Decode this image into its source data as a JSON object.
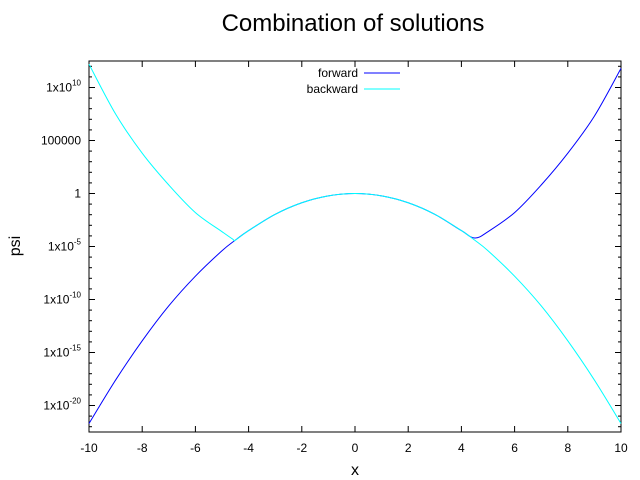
{
  "chart_data": {
    "type": "line",
    "title": "Combination of solutions",
    "xlabel": "x",
    "ylabel": "psi",
    "xlim": [
      -10,
      10
    ],
    "ylim_log10": [
      -22.5,
      12.5
    ],
    "yscale": "log",
    "grid": false,
    "legend_position": "top-center",
    "x_ticks": [
      -10,
      -8,
      -6,
      -4,
      -2,
      0,
      2,
      4,
      6,
      8,
      10
    ],
    "y_ticks": [
      {
        "exp": 10,
        "base": "1x10",
        "sup": "10"
      },
      {
        "exp": 5,
        "text": "100000"
      },
      {
        "exp": 0,
        "text": "1"
      },
      {
        "exp": -5,
        "base": "1x10",
        "sup": "-5"
      },
      {
        "exp": -10,
        "base": "1x10",
        "sup": "-10"
      },
      {
        "exp": -15,
        "base": "1x10",
        "sup": "-15"
      },
      {
        "exp": -20,
        "base": "1x10",
        "sup": "-20"
      }
    ],
    "series": [
      {
        "name": "forward",
        "color": "#0000ff",
        "x": [
          -10,
          -9,
          -8,
          -7,
          -6,
          -5,
          -4.5,
          -4,
          -3,
          -2,
          -1,
          0,
          1,
          2,
          3,
          4,
          4.5,
          5,
          6,
          7,
          8,
          9,
          10
        ],
        "log10_y": [
          -21.7,
          -17.6,
          -13.9,
          -10.6,
          -7.8,
          -5.4,
          -4.4,
          -3.5,
          -1.96,
          -0.87,
          -0.22,
          0,
          -0.22,
          -0.87,
          -1.96,
          -3.5,
          -4.2,
          -3.6,
          -1.8,
          0.8,
          3.8,
          7.3,
          11.8
        ]
      },
      {
        "name": "backward",
        "color": "#00ffff",
        "x": [
          -10,
          -9,
          -8,
          -7,
          -6,
          -5,
          -4.6,
          -4.5,
          -4,
          -3,
          -2,
          -1,
          0,
          1,
          2,
          3,
          4,
          4.5,
          5,
          6,
          7,
          8,
          9,
          10
        ],
        "log10_y": [
          12.2,
          7.5,
          3.8,
          0.8,
          -1.8,
          -3.6,
          -4.3,
          -4.4,
          -3.5,
          -1.96,
          -0.87,
          -0.22,
          0,
          -0.22,
          -0.87,
          -1.96,
          -3.5,
          -4.4,
          -5.4,
          -7.8,
          -10.6,
          -13.9,
          -17.6,
          -21.7
        ]
      }
    ]
  }
}
